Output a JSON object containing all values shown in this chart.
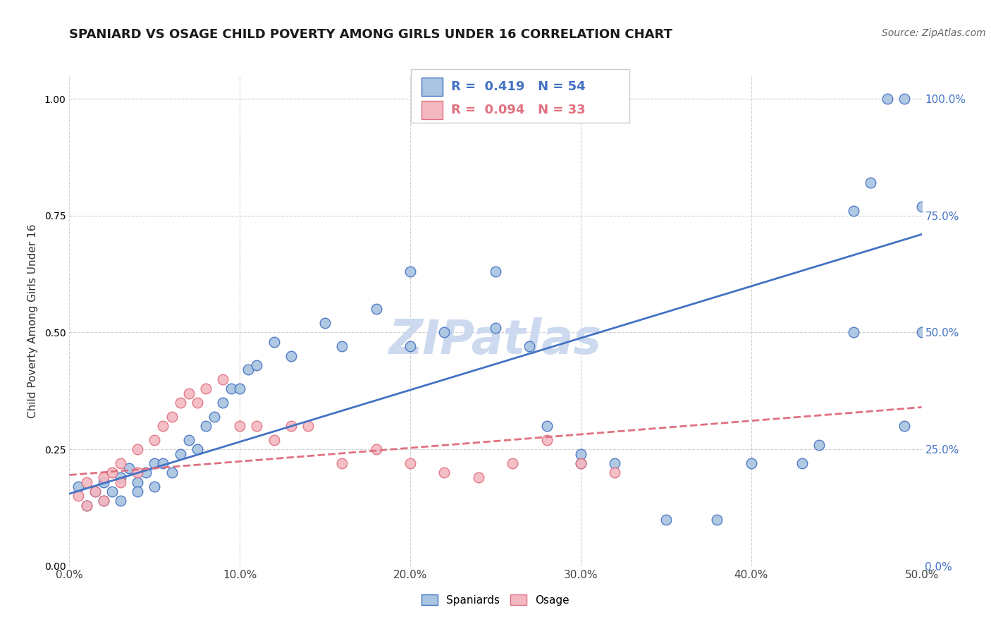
{
  "title": "SPANIARD VS OSAGE CHILD POVERTY AMONG GIRLS UNDER 16 CORRELATION CHART",
  "source": "Source: ZipAtlas.com",
  "ylabel": "Child Poverty Among Girls Under 16",
  "watermark": "ZIPatlas",
  "blue_R": 0.419,
  "blue_N": 54,
  "pink_R": 0.094,
  "pink_N": 33,
  "blue_color": "#a8c4e0",
  "blue_edge_color": "#4472c4",
  "pink_color": "#f4b8c1",
  "pink_edge_color": "#e07080",
  "background_color": "#ffffff",
  "grid_color": "#cccccc",
  "xlim": [
    0.0,
    0.5
  ],
  "ylim": [
    0.0,
    1.05
  ],
  "xticks": [
    0.0,
    0.1,
    0.2,
    0.3,
    0.4,
    0.5
  ],
  "yticks": [
    0.0,
    0.25,
    0.5,
    0.75,
    1.0
  ],
  "xtick_labels": [
    "0.0%",
    "10.0%",
    "20.0%",
    "30.0%",
    "40.0%",
    "50.0%"
  ],
  "ytick_labels": [
    "0.0%",
    "25.0%",
    "50.0%",
    "75.0%",
    "100.0%"
  ],
  "blue_x": [
    0.005,
    0.01,
    0.015,
    0.02,
    0.02,
    0.025,
    0.03,
    0.03,
    0.035,
    0.04,
    0.04,
    0.045,
    0.05,
    0.05,
    0.055,
    0.06,
    0.065,
    0.07,
    0.075,
    0.08,
    0.085,
    0.09,
    0.095,
    0.1,
    0.105,
    0.11,
    0.12,
    0.13,
    0.15,
    0.16,
    0.18,
    0.2,
    0.22,
    0.25,
    0.27,
    0.3,
    0.32,
    0.35,
    0.38,
    0.4,
    0.43,
    0.44,
    0.46,
    0.47,
    0.48,
    0.49,
    0.5,
    0.5,
    0.49,
    0.46,
    0.28,
    0.3,
    0.25,
    0.2
  ],
  "blue_y": [
    0.17,
    0.13,
    0.16,
    0.14,
    0.18,
    0.16,
    0.19,
    0.14,
    0.21,
    0.18,
    0.16,
    0.2,
    0.22,
    0.17,
    0.22,
    0.2,
    0.24,
    0.27,
    0.25,
    0.3,
    0.32,
    0.35,
    0.38,
    0.38,
    0.42,
    0.43,
    0.48,
    0.45,
    0.52,
    0.47,
    0.55,
    0.47,
    0.5,
    0.51,
    0.47,
    0.22,
    0.22,
    0.1,
    0.1,
    0.22,
    0.22,
    0.26,
    0.76,
    0.82,
    1.0,
    1.0,
    0.77,
    0.5,
    0.3,
    0.5,
    0.3,
    0.24,
    0.63,
    0.63
  ],
  "pink_x": [
    0.005,
    0.01,
    0.01,
    0.015,
    0.02,
    0.02,
    0.025,
    0.03,
    0.03,
    0.04,
    0.04,
    0.05,
    0.055,
    0.06,
    0.065,
    0.07,
    0.075,
    0.08,
    0.09,
    0.1,
    0.11,
    0.12,
    0.13,
    0.14,
    0.16,
    0.18,
    0.2,
    0.22,
    0.24,
    0.26,
    0.28,
    0.3,
    0.32
  ],
  "pink_y": [
    0.15,
    0.18,
    0.13,
    0.16,
    0.19,
    0.14,
    0.2,
    0.22,
    0.18,
    0.25,
    0.2,
    0.27,
    0.3,
    0.32,
    0.35,
    0.37,
    0.35,
    0.38,
    0.4,
    0.3,
    0.3,
    0.27,
    0.3,
    0.3,
    0.22,
    0.25,
    0.22,
    0.2,
    0.19,
    0.22,
    0.27,
    0.22,
    0.2
  ],
  "blue_trend": [
    0.0,
    0.5,
    0.155,
    0.71
  ],
  "pink_trend": [
    0.0,
    0.5,
    0.195,
    0.34
  ],
  "legend_labels": [
    "Spaniards",
    "Osage"
  ],
  "title_fontsize": 13,
  "axis_label_fontsize": 11,
  "tick_fontsize": 11,
  "source_fontsize": 10,
  "watermark_fontsize": 48,
  "watermark_color": "#ccd9ee",
  "right_tick_color": "#4472c4"
}
